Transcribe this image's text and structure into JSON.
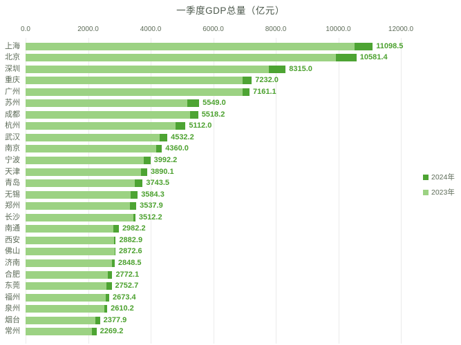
{
  "chart_data": {
    "type": "bar",
    "orientation": "horizontal",
    "stacked": true,
    "title": "一季度GDP总量（亿元）",
    "categories": [
      "上海",
      "北京",
      "深圳",
      "重庆",
      "广州",
      "苏州",
      "成都",
      "杭州",
      "武汉",
      "南京",
      "宁波",
      "天津",
      "青岛",
      "无锡",
      "郑州",
      "长沙",
      "南通",
      "西安",
      "佛山",
      "济南",
      "合肥",
      "东莞",
      "福州",
      "泉州",
      "烟台",
      "常州"
    ],
    "series": [
      {
        "name": "2024年",
        "role": "total",
        "color_key": "bar_2024",
        "values": [
          11098.5,
          10581.4,
          8315.0,
          7232.0,
          7161.1,
          5549.0,
          5518.2,
          5112.0,
          4532.2,
          4360.0,
          3992.2,
          3890.1,
          3743.5,
          3584.3,
          3537.9,
          3512.2,
          2982.2,
          2882.9,
          2872.6,
          2848.5,
          2772.1,
          2752.7,
          2673.4,
          2610.2,
          2377.9,
          2269.2
        ],
        "labels": [
          "11098.5",
          "10581.4",
          "8315.0",
          "7232.0",
          "7161.1",
          "5549.0",
          "5518.2",
          "5112.0",
          "4532.2",
          "4360.0",
          "3992.2",
          "3890.1",
          "3743.5",
          "3584.3",
          "3537.9",
          "3512.2",
          "2982.2",
          "2882.9",
          "2872.6",
          "2848.5",
          "2772.1",
          "2752.7",
          "2673.4",
          "2610.2",
          "2377.9",
          "2269.2"
        ]
      },
      {
        "name": "2023年",
        "role": "base",
        "color_key": "bar_2023",
        "estimated_from_bar_lengths": true,
        "values": [
          10520,
          9920,
          7785,
          6945,
          6950,
          5175,
          5255,
          4790,
          4295,
          4185,
          3780,
          3685,
          3485,
          3370,
          3340,
          3450,
          2805,
          2835,
          2845,
          2755,
          2640,
          2580,
          2565,
          2530,
          2230,
          2130
        ]
      }
    ],
    "x_axis": {
      "position": "top",
      "min": 0,
      "max": 12000,
      "tick_step": 2000,
      "tick_values": [
        0,
        2000,
        4000,
        6000,
        8000,
        10000,
        12000
      ],
      "tick_labels": [
        "0.0",
        "2000.0",
        "4000.0",
        "6000.0",
        "8000.0",
        "10000.0",
        "12000.0"
      ],
      "grid": true
    },
    "legend": {
      "position": "center-right",
      "entries": [
        "2024年",
        "2023年"
      ]
    },
    "colors": {
      "bar_2023": "#9CD283",
      "bar_2024": "#4DA433",
      "value_label": "#4CA12F",
      "axis_text": "#5D6B58",
      "title_text": "#4C584C",
      "gridline": "#EBEBEB",
      "background": "#FFFFFF"
    }
  }
}
